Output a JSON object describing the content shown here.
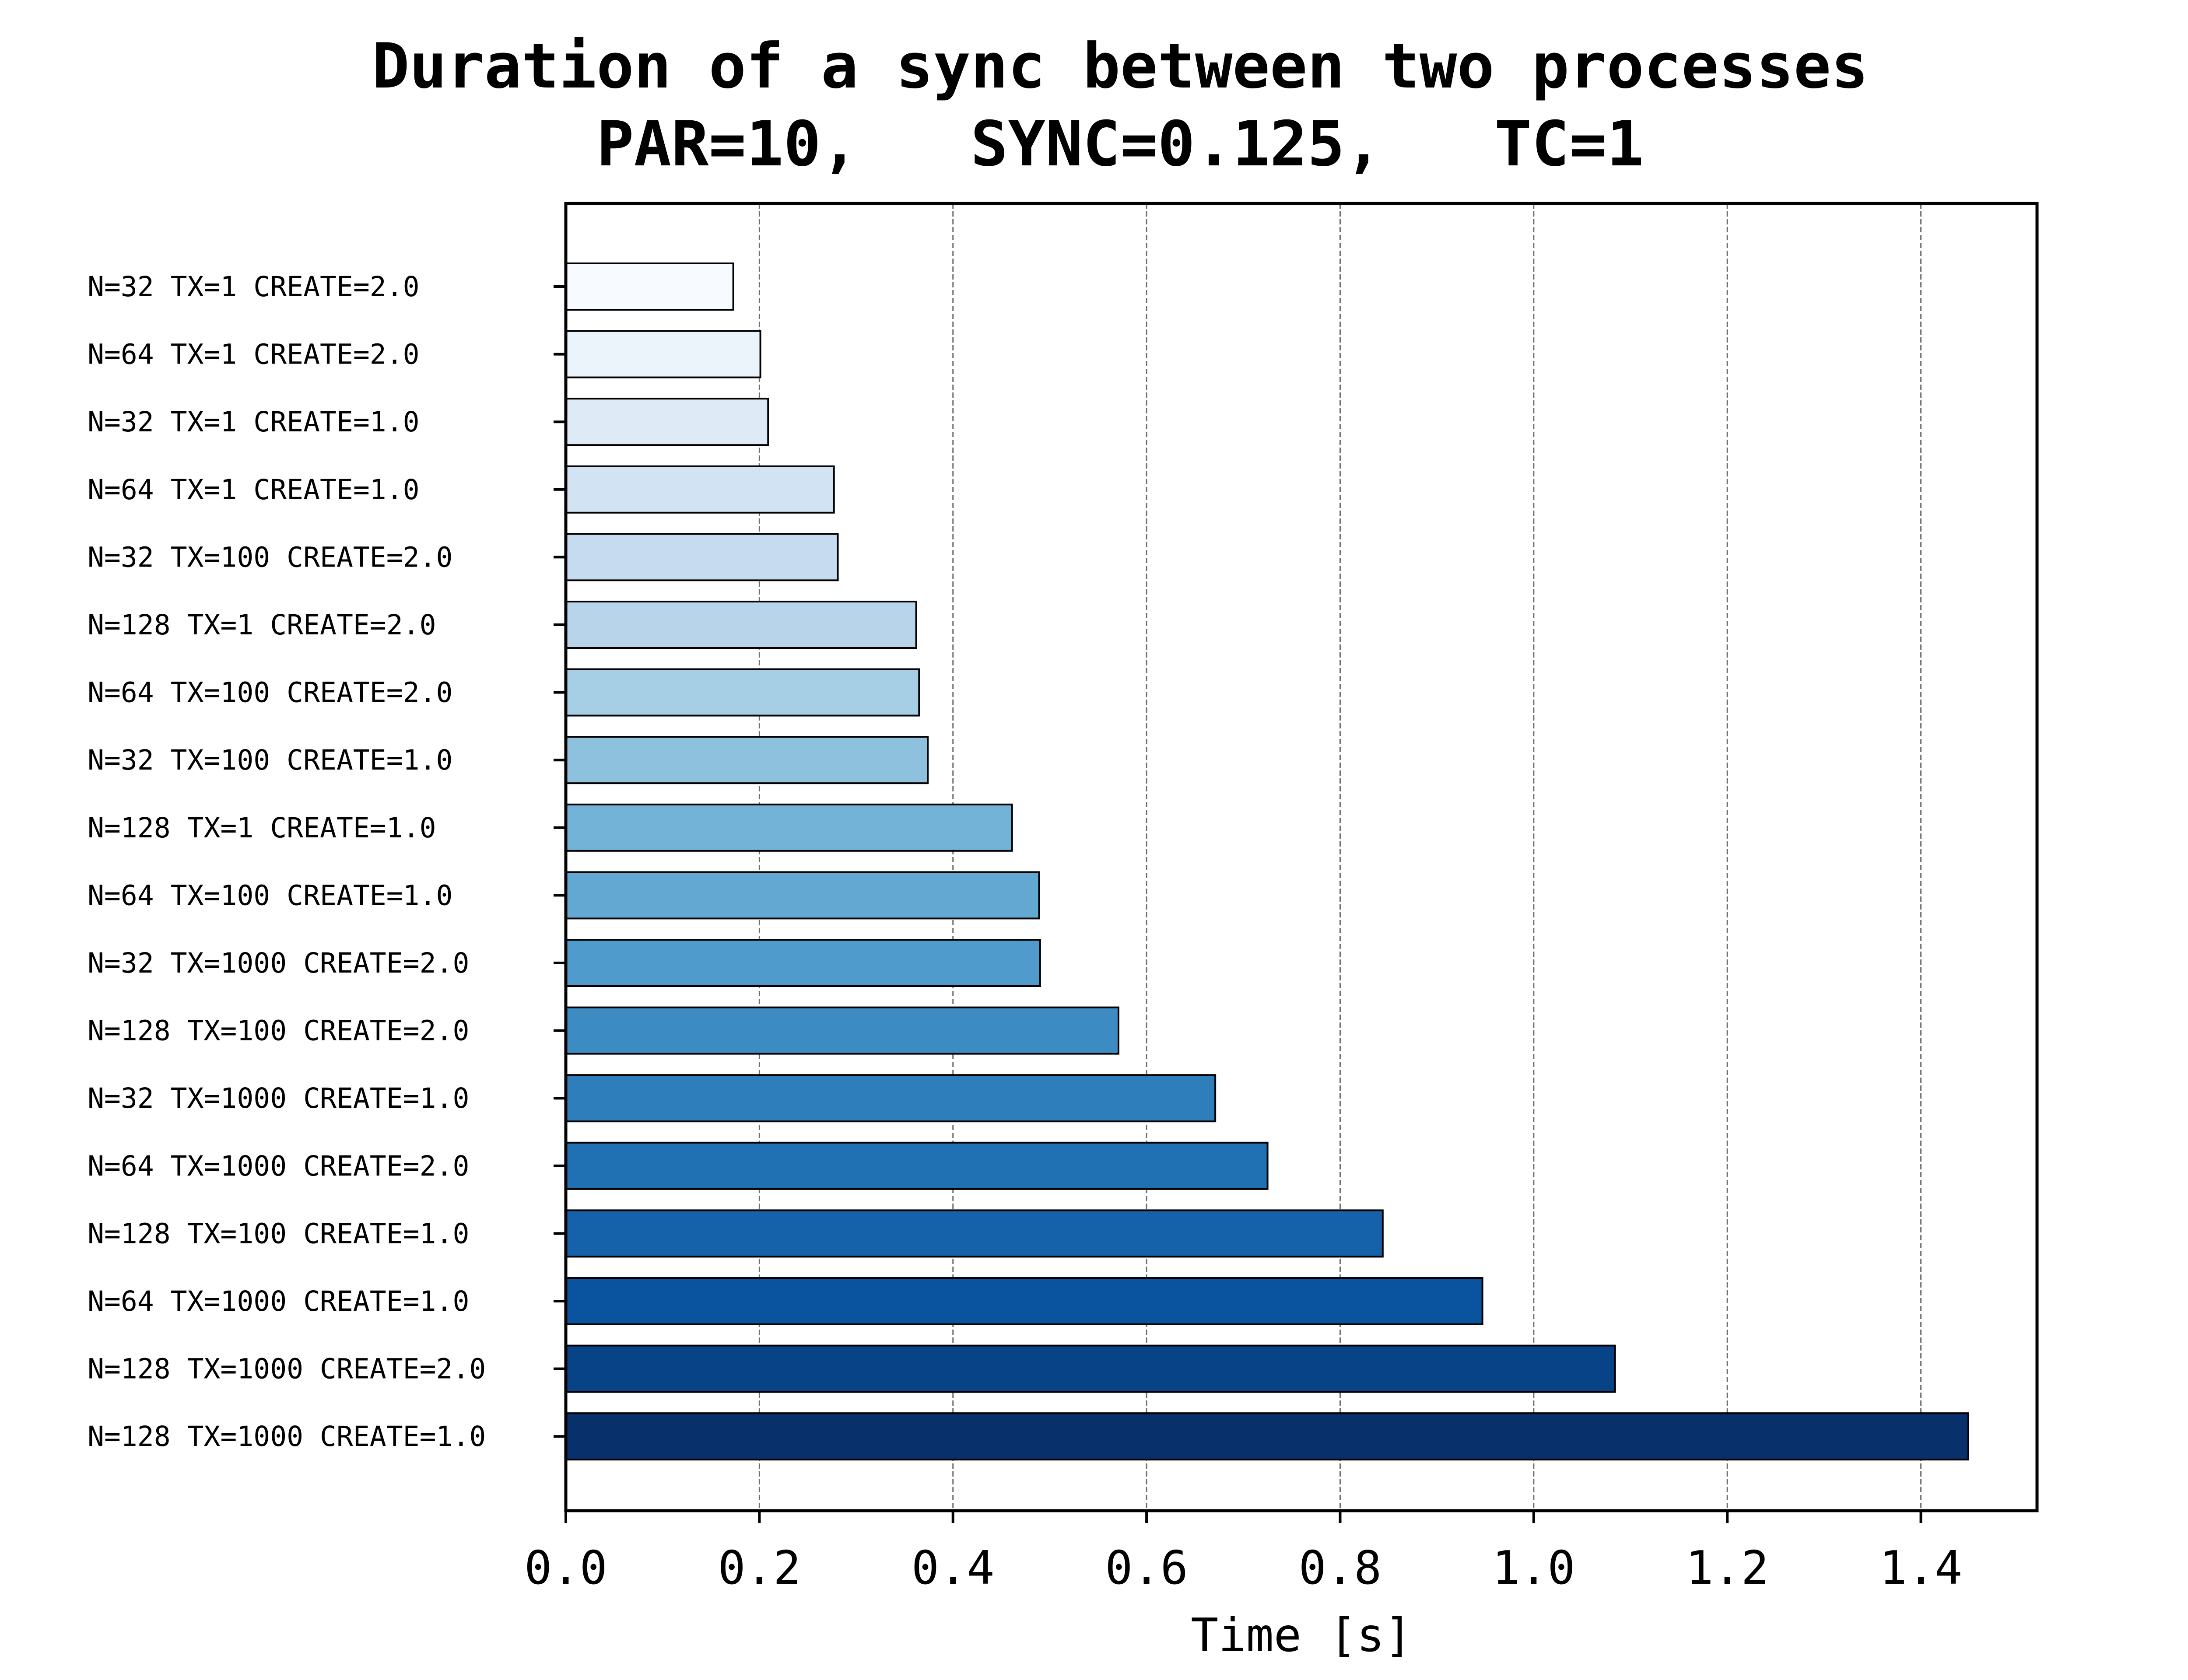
{
  "chart_data": {
    "type": "bar",
    "orientation": "horizontal",
    "title": "Duration of a sync between two processes",
    "subtitle": "PAR=10,   SYNC=0.125,   TC=1",
    "xlabel": "Time [s]",
    "ylabel": "",
    "xlim": [
      0.0,
      1.52
    ],
    "xticks": [
      "0.0",
      "0.2",
      "0.4",
      "0.6",
      "0.8",
      "1.0",
      "1.2",
      "1.4"
    ],
    "grid": "vertical dashed",
    "legend": "none",
    "categories": [
      "N=32   TX=1    CREATE=2.0",
      "N=64   TX=1    CREATE=2.0",
      "N=32   TX=1    CREATE=1.0",
      "N=64   TX=1    CREATE=1.0",
      "N=32   TX=100  CREATE=2.0",
      "N=128  TX=1    CREATE=2.0",
      "N=64   TX=100  CREATE=2.0",
      "N=32   TX=100  CREATE=1.0",
      "N=128  TX=1    CREATE=1.0",
      "N=64   TX=100  CREATE=1.0",
      "N=32   TX=1000 CREATE=2.0",
      "N=128  TX=100  CREATE=2.0",
      "N=32   TX=1000 CREATE=1.0",
      "N=64   TX=1000 CREATE=2.0",
      "N=128  TX=100  CREATE=1.0",
      "N=64   TX=1000 CREATE=1.0",
      "N=128  TX=1000 CREATE=2.0",
      "N=128  TX=1000 CREATE=1.0"
    ],
    "values": [
      0.173,
      0.201,
      0.209,
      0.277,
      0.281,
      0.362,
      0.365,
      0.374,
      0.461,
      0.489,
      0.49,
      0.571,
      0.671,
      0.725,
      0.844,
      0.947,
      1.084,
      1.449
    ],
    "colors": [
      "#f7fbff",
      "#ebf3fb",
      "#deebf7",
      "#d2e3f3",
      "#c6dbef",
      "#b7d4ea",
      "#a6cee4",
      "#8dc1dd",
      "#74b3d8",
      "#62a8d3",
      "#4f9bcb",
      "#3c8cc3",
      "#2e7ebc",
      "#2070b4",
      "#1662aa",
      "#0a539e",
      "#084287",
      "#08306b"
    ]
  }
}
